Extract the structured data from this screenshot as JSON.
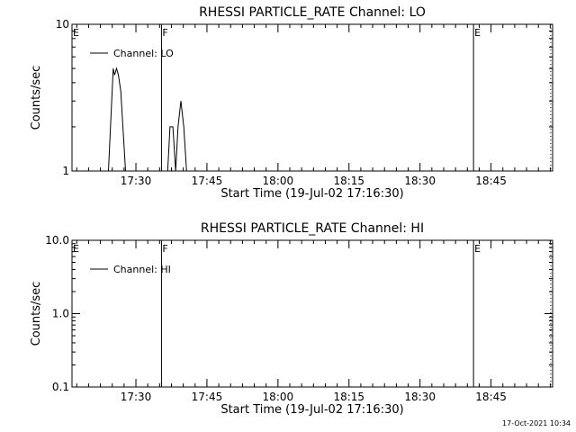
{
  "footer": {
    "timestamp": "17-Oct-2021 10:34"
  },
  "chart_data": [
    {
      "type": "line",
      "title": "RHESSI PARTICLE_RATE Channel: LO",
      "xlabel": "Start Time (19-Jul-02 17:16:30)",
      "ylabel": "Counts/sec",
      "yscale": "log",
      "ylim": [
        1,
        10
      ],
      "yticks": [
        1,
        10
      ],
      "yticklabels": [
        "1",
        "10"
      ],
      "xlim_minutes": [
        0,
        101.5
      ],
      "xticks_minutes": [
        13.5,
        28.5,
        43.5,
        58.5,
        73.5,
        88.5
      ],
      "xticklabels": [
        "17:30",
        "17:45",
        "18:00",
        "18:15",
        "18:30",
        "18:45"
      ],
      "grid": false,
      "legend": {
        "position": "top-left",
        "entries": [
          "Channel: LO"
        ]
      },
      "series": [
        {
          "name": "Channel: LO",
          "x": [
            7.7,
            8.7,
            9.0,
            9.4,
            9.8,
            10.3,
            11.3,
            20.2,
            20.7,
            21.3,
            21.9,
            22.4,
            23.0,
            23.6,
            24.2
          ],
          "y": [
            1.0,
            5.0,
            4.5,
            5.0,
            4.5,
            3.5,
            1.0,
            1.0,
            2.0,
            2.0,
            1.0,
            2.0,
            3.0,
            2.0,
            1.0
          ]
        }
      ],
      "markers": [
        {
          "label": "E",
          "x_minutes": 0,
          "style": "solid"
        },
        {
          "label": "F",
          "x_minutes": 18.9,
          "style": "solid"
        },
        {
          "label": "E",
          "x_minutes": 84.8,
          "style": "solid"
        },
        {
          "label": "",
          "x_minutes": 101.1,
          "style": "dotted"
        }
      ]
    },
    {
      "type": "line",
      "title": "RHESSI PARTICLE_RATE Channel: HI",
      "xlabel": "Start Time (19-Jul-02 17:16:30)",
      "ylabel": "Counts/sec",
      "yscale": "log",
      "ylim": [
        0.1,
        10
      ],
      "yticks": [
        0.1,
        1,
        10
      ],
      "yticklabels": [
        "0.1",
        "1.0",
        "10.0"
      ],
      "xlim_minutes": [
        0,
        101.5
      ],
      "xticks_minutes": [
        13.5,
        28.5,
        43.5,
        58.5,
        73.5,
        88.5
      ],
      "xticklabels": [
        "17:30",
        "17:45",
        "18:00",
        "18:15",
        "18:30",
        "18:45"
      ],
      "grid": false,
      "legend": {
        "position": "top-left",
        "entries": [
          "Channel: HI"
        ]
      },
      "series": [
        {
          "name": "Channel: HI",
          "x": [],
          "y": []
        }
      ],
      "markers": [
        {
          "label": "E",
          "x_minutes": 0,
          "style": "solid"
        },
        {
          "label": "F",
          "x_minutes": 18.9,
          "style": "solid"
        },
        {
          "label": "E",
          "x_minutes": 84.8,
          "style": "solid"
        },
        {
          "label": "",
          "x_minutes": 101.1,
          "style": "dotted"
        }
      ]
    }
  ]
}
